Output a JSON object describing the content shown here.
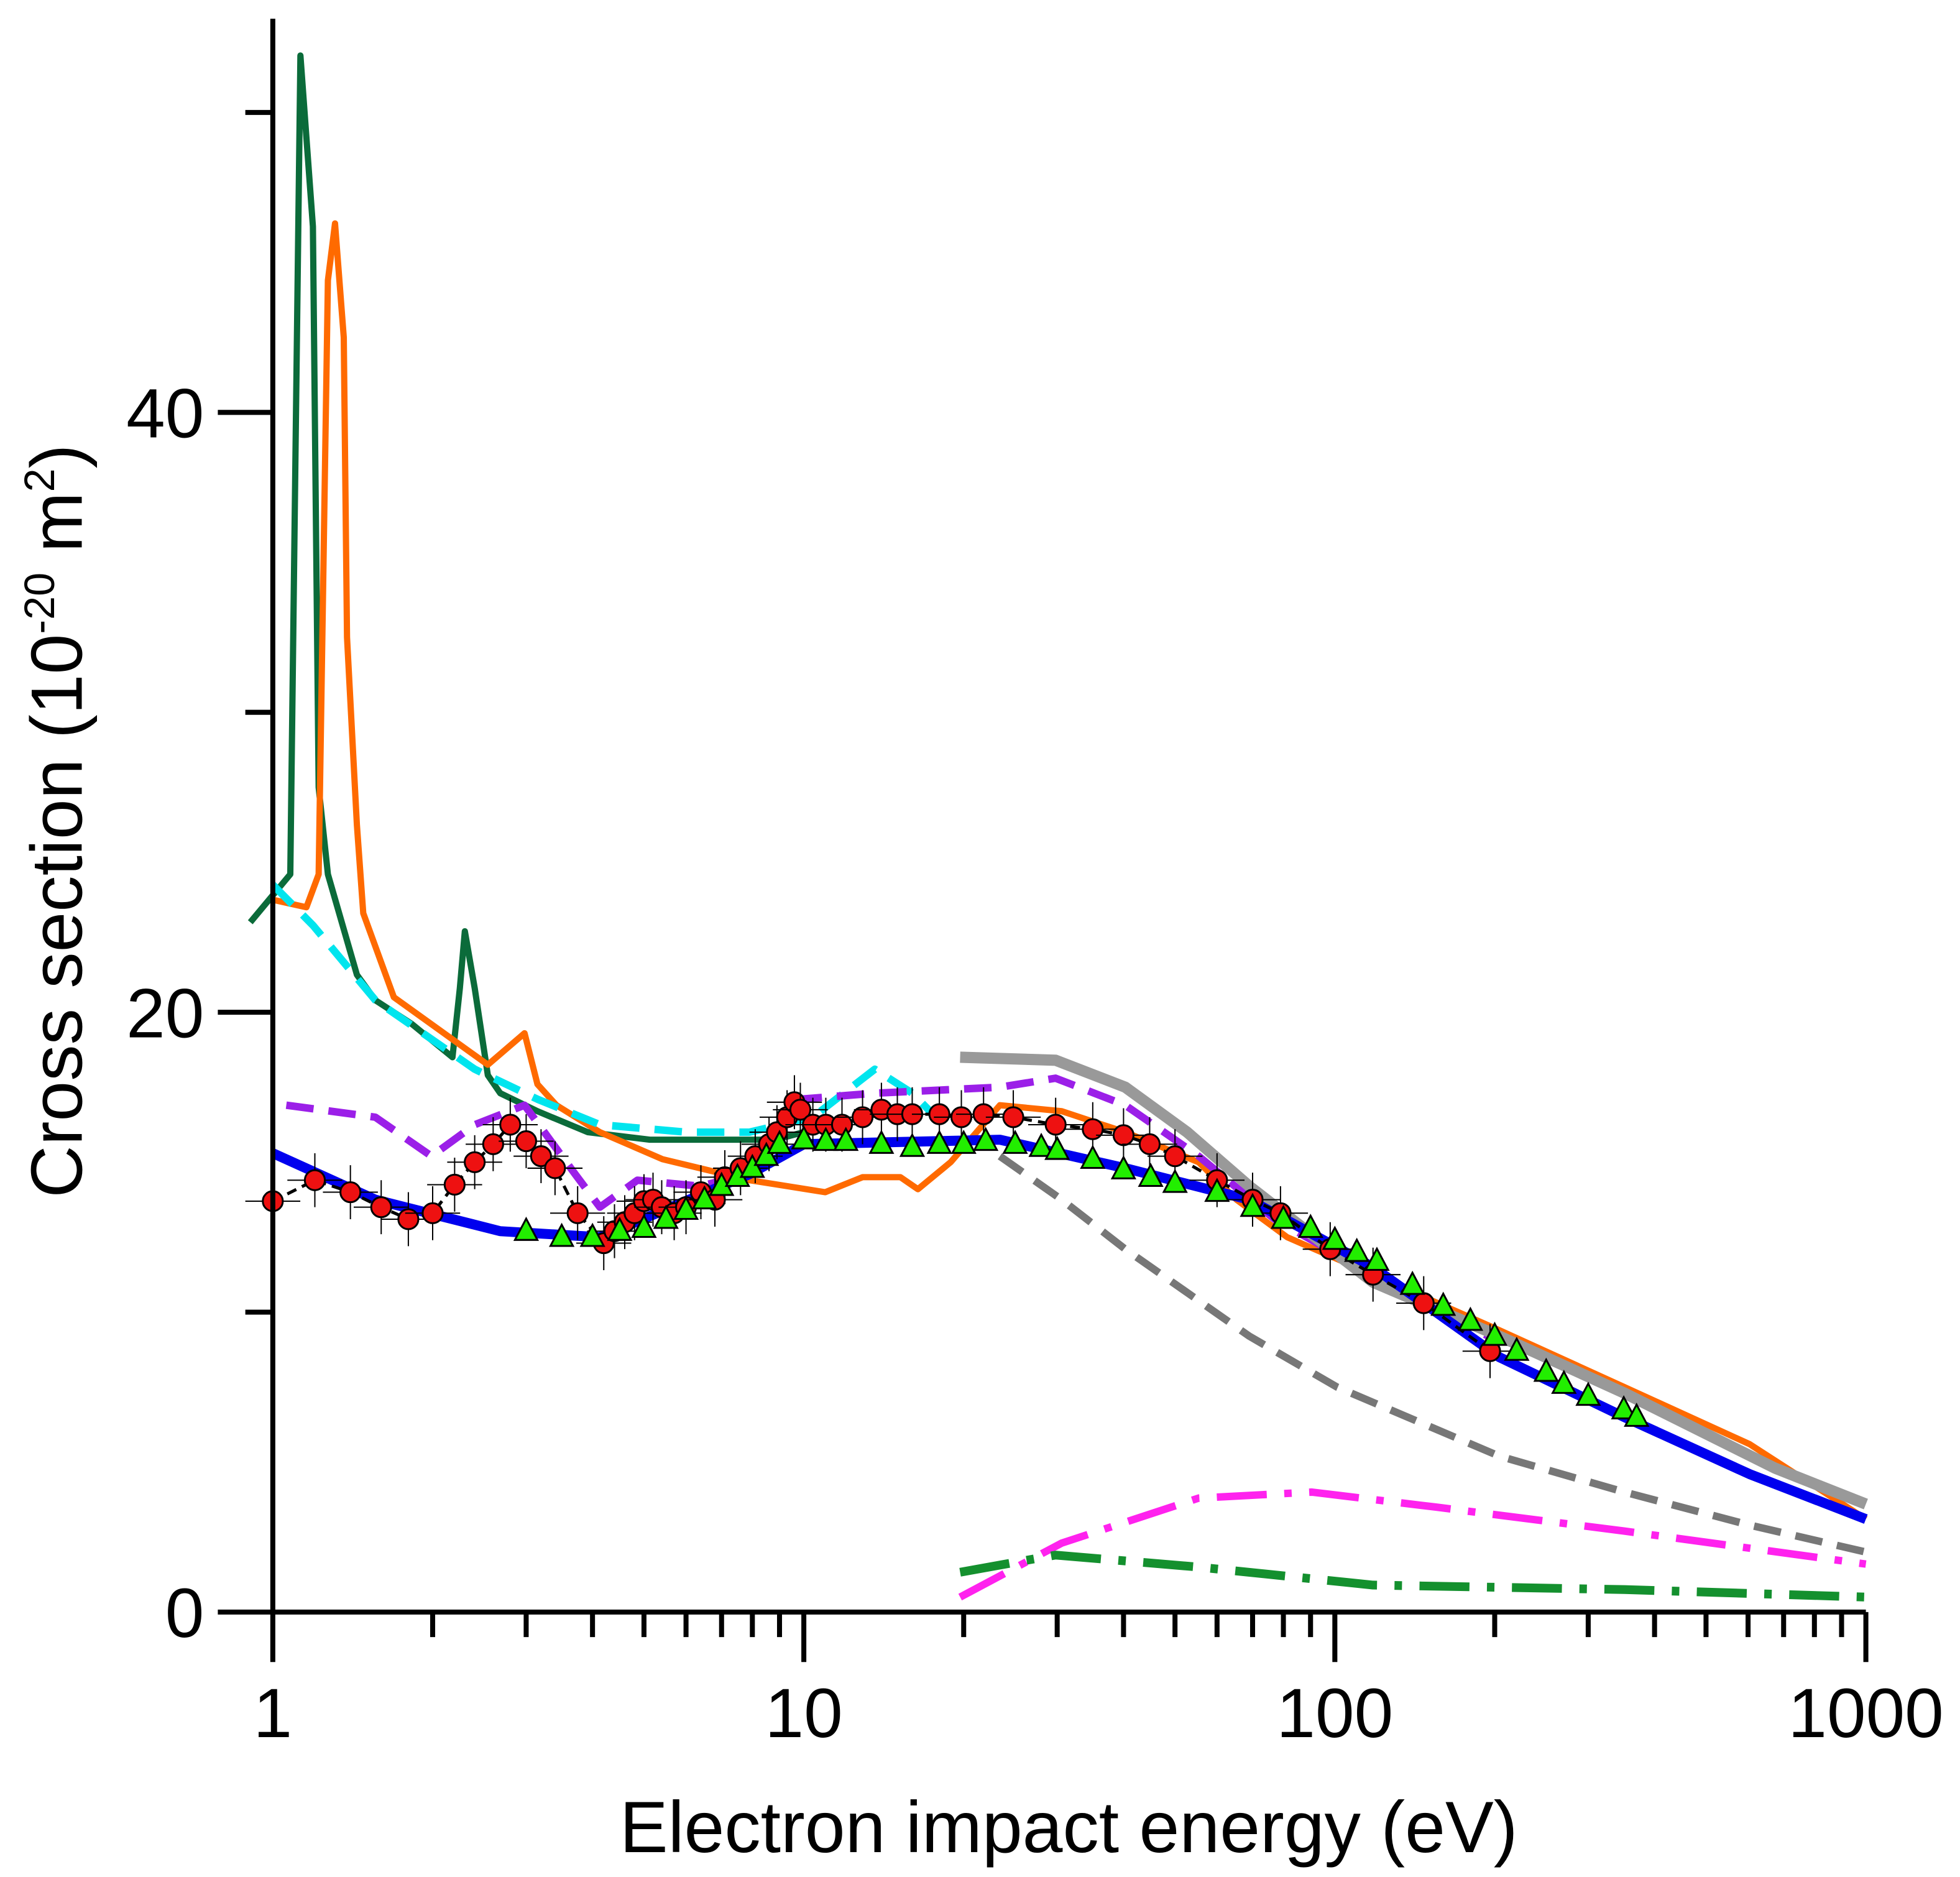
{
  "chart_data": {
    "type": "line",
    "xlabel": "Electron impact energy (eV)",
    "ylabel_main": "Cross section (10",
    "ylabel_exp": "-20",
    "ylabel_unit": " m",
    "ylabel_unit_exp": "2",
    "ylabel_close": ")",
    "xscale": "log",
    "xlim": [
      1,
      1000
    ],
    "ylim": [
      0,
      52.5
    ],
    "xticks": [
      {
        "v": 1,
        "label": "1"
      },
      {
        "v": 10,
        "label": "10"
      },
      {
        "v": 100,
        "label": "100"
      },
      {
        "v": 1000,
        "label": "1000"
      }
    ],
    "yticks": [
      {
        "v": 0,
        "label": "0"
      },
      {
        "v": 10,
        "label": ""
      },
      {
        "v": 20,
        "label": "20"
      },
      {
        "v": 30,
        "label": ""
      },
      {
        "v": 40,
        "label": "40"
      },
      {
        "v": 50,
        "label": ""
      }
    ],
    "grid": false,
    "lines": [
      {
        "color": "#0b6b3a",
        "style": "solid",
        "width": 5,
        "x": [
          0.907,
          1.079,
          1.127,
          1.19,
          1.22,
          1.27,
          1.44,
          1.56,
          1.83,
          2.18,
          2.25,
          2.3,
          2.4,
          2.54,
          2.68,
          3.15,
          3.92,
          5.13,
          7.1,
          8.83,
          10
        ],
        "y": [
          23,
          24.6,
          51.9,
          46.2,
          27.5,
          24.6,
          21.25,
          20.4,
          19.6,
          18.5,
          20.8,
          22.7,
          20.8,
          17.9,
          17.3,
          16.7,
          16.0,
          15.75,
          15.75,
          15.75,
          16.0
        ]
      },
      {
        "color": "#ff6a00",
        "style": "solid",
        "width": 5,
        "x": [
          1,
          1.157,
          1.22,
          1.27,
          1.31,
          1.36,
          1.38,
          1.44,
          1.48,
          1.69,
          2.54,
          2.98,
          3.15,
          3.42,
          4.13,
          5.42,
          7.9,
          10.97,
          12.9,
          15.2,
          16.4,
          18.9,
          23.4,
          30.6,
          40.3,
          55.4,
          65.3,
          81.3,
          118,
          204,
          351,
          604,
          1000
        ],
        "y": [
          23.75,
          23.5,
          24.6,
          44.4,
          46.3,
          42.5,
          32.5,
          26.25,
          23.3,
          20.5,
          18.25,
          19.3,
          17.6,
          16.9,
          16,
          15.1,
          14.4,
          14.0,
          14.5,
          14.5,
          14.1,
          15,
          16.9,
          16.7,
          16.0,
          15.0,
          13.75,
          12.5,
          11.25,
          9.4,
          7.5,
          5.6,
          3.1
        ]
      },
      {
        "color": "#00e5ee",
        "style": "dash",
        "width": 6,
        "x": [
          1,
          1.19,
          1.56,
          2.4,
          3.15,
          4.13,
          6.03,
          7.9,
          10.4,
          13.6,
          16,
          18.9
        ],
        "y": [
          24.25,
          22.9,
          20.4,
          18.1,
          17.1,
          16.25,
          16.0,
          16.0,
          16.5,
          18.1,
          17.3,
          16.0
        ]
      },
      {
        "color": "#9b1fe8",
        "style": "dash",
        "width": 6,
        "x": [
          1.06,
          1.56,
          1.99,
          2.4,
          2.98,
          3.71,
          4.13,
          4.86,
          6.37,
          7.9,
          9.8,
          13.6,
          23.4,
          29.8,
          40.3,
          55.4,
          77,
          118,
          204
        ],
        "y": [
          16.9,
          16.5,
          15.2,
          16.25,
          16.9,
          14.6,
          13.5,
          14.4,
          14.2,
          14.6,
          17.1,
          17.3,
          17.5,
          17.8,
          16.9,
          15.2,
          13.1,
          11.25,
          9.0
        ]
      },
      {
        "color": "#999999",
        "style": "solid",
        "width": 9,
        "x": [
          19.7,
          29.8,
          40.3,
          52.7,
          69,
          118,
          204,
          351,
          674,
          1000
        ],
        "y": [
          18.5,
          18.4,
          17.5,
          16,
          14.2,
          11,
          9.2,
          7.3,
          4.8,
          3.6
        ]
      },
      {
        "color": "#777777",
        "style": "dash",
        "width": 6,
        "x": [
          23.4,
          30.6,
          40.3,
          69,
          101,
          204,
          351,
          604,
          1000
        ],
        "y": [
          15.2,
          13.75,
          12.1,
          9.2,
          7.5,
          5.2,
          4.0,
          2.9,
          2.0
        ]
      },
      {
        "color": "#0000ee",
        "style": "solid",
        "width": 8,
        "x": [
          1,
          1.56,
          2.68,
          4.13,
          7.9,
          10,
          23.4,
          40.3,
          69,
          118,
          204,
          351,
          604,
          1000
        ],
        "y": [
          15.3,
          13.75,
          12.7,
          12.5,
          14.6,
          15.6,
          15.75,
          14.8,
          13.75,
          11.5,
          8.5,
          6.5,
          4.6,
          3.1
        ]
      },
      {
        "color": "#ff22ee",
        "style": "dashdot",
        "width": 6,
        "x": [
          19.7,
          30.6,
          55.4,
          90.5,
          155,
          351,
          1000
        ],
        "y": [
          0.5,
          2.3,
          3.8,
          4.0,
          3.5,
          2.7,
          1.6
        ]
      },
      {
        "color": "#14902e",
        "style": "dashdot",
        "width": 7,
        "x": [
          19.7,
          29.8,
          55.4,
          118,
          351,
          1000
        ],
        "y": [
          1.33,
          1.9,
          1.5,
          0.9,
          0.75,
          0.5
        ]
      }
    ],
    "circles": {
      "color": "#ee1111",
      "x": [
        1,
        1.2,
        1.4,
        1.6,
        1.8,
        2,
        2.2,
        2.4,
        2.6,
        2.8,
        3,
        3.2,
        3.4,
        3.75,
        4.2,
        4.4,
        4.6,
        4.8,
        5,
        5.2,
        5.4,
        5.7,
        6,
        6.4,
        6.8,
        7.1,
        7.6,
        8.1,
        8.6,
        8.9,
        9.3,
        9.6,
        9.85,
        10.4,
        11,
        11.8,
        12.9,
        14,
        15,
        16,
        18,
        19.8,
        21.8,
        24.8,
        29.8,
        35,
        40,
        44.8,
        50,
        60,
        70,
        79,
        98,
        118,
        147,
        196
      ],
      "y": [
        13.7,
        14.4,
        14.0,
        13.5,
        13.1,
        13.3,
        14.25,
        15,
        15.6,
        16.25,
        15.7,
        15.2,
        14.8,
        13.3,
        12.3,
        12.7,
        13,
        13.3,
        13.7,
        13.75,
        13.5,
        13.3,
        13.5,
        14,
        13.75,
        14.5,
        14.8,
        15.2,
        15.6,
        16,
        16.5,
        17,
        16.75,
        16.25,
        16.25,
        16.25,
        16.5,
        16.75,
        16.6,
        16.6,
        16.6,
        16.5,
        16.6,
        16.5,
        16.25,
        16.1,
        15.9,
        15.6,
        15.2,
        14.4,
        13.75,
        13.3,
        12.1,
        11.25,
        10.3,
        8.7
      ],
      "error": 0.9
    },
    "triangles": {
      "color": "#22ee00",
      "x": [
        3,
        3.5,
        4,
        4.5,
        5,
        5.5,
        6,
        6.5,
        7,
        7.5,
        8,
        8.5,
        9,
        10,
        11,
        12,
        14,
        16,
        18,
        20,
        22,
        25,
        28,
        30,
        35,
        40,
        45,
        50,
        60,
        70,
        80,
        90,
        100,
        110,
        120,
        140,
        160,
        180,
        200,
        220,
        250,
        270,
        300,
        350,
        370
      ],
      "y": [
        12.7,
        12.5,
        12.5,
        12.7,
        12.8,
        13.1,
        13.4,
        13.75,
        14.2,
        14.5,
        14.8,
        15.2,
        15.6,
        15.75,
        15.7,
        15.7,
        15.6,
        15.5,
        15.6,
        15.6,
        15.7,
        15.6,
        15.5,
        15.4,
        15.1,
        14.75,
        14.5,
        14.3,
        14,
        13.5,
        13.1,
        12.8,
        12.4,
        12,
        11.7,
        10.9,
        10.2,
        9.7,
        9.2,
        8.7,
        8,
        7.6,
        7.2,
        6.75,
        6.5
      ]
    }
  }
}
